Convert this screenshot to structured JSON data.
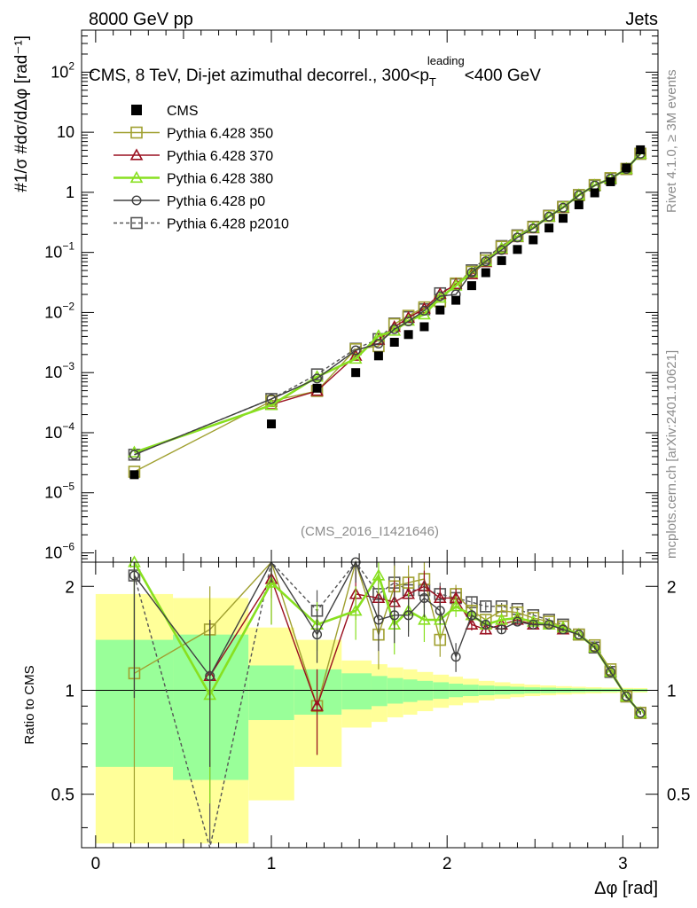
{
  "header": {
    "left": "8000 GeV pp",
    "right": "Jets"
  },
  "side_labels": {
    "rivet": "Rivet 4.1.0, ≥ 3M events",
    "mcplots": "mcplots.cern.ch [arXiv:2401.10621]"
  },
  "chart_data": {
    "type": "line",
    "title": "CMS, 8 TeV, Di-jet azimuthal decorrel., 300<p_T^leading<400 GeV",
    "title_parts": {
      "main": "CMS, 8 TeV, Di-jet azimuthal decorrel., 300<p",
      "sub": "T",
      "sup": "leading",
      "tail": "<400 GeV"
    },
    "analysis_label": "(CMS_2016_I1421646)",
    "xlabel": "Δφ [rad]",
    "ylabel": "#1/σ #dσ/dΔφ [rad⁻¹]",
    "ratio_ylabel": "Ratio to CMS",
    "xlim": [
      -0.08,
      3.2
    ],
    "ylim": [
      7e-07,
      500
    ],
    "yscale": "log",
    "ratio_ylim": [
      0.35,
      2.35
    ],
    "x_ticks": [
      0,
      1,
      2,
      3
    ],
    "y_ticks": [
      {
        "v": 1e-06,
        "base": "10",
        "exp": "−6"
      },
      {
        "v": 1e-05,
        "base": "10",
        "exp": "−5"
      },
      {
        "v": 0.0001,
        "base": "10",
        "exp": "−4"
      },
      {
        "v": 0.001,
        "base": "10",
        "exp": "−3"
      },
      {
        "v": 0.01,
        "base": "10",
        "exp": "−2"
      },
      {
        "v": 0.1,
        "base": "10",
        "exp": "−1"
      },
      {
        "v": 1,
        "base": "1",
        "exp": ""
      },
      {
        "v": 10,
        "base": "10",
        "exp": ""
      },
      {
        "v": 100,
        "base": "10",
        "exp": "2"
      }
    ],
    "ratio_ticks": [
      0.5,
      1,
      2
    ],
    "x": [
      0.22,
      0.65,
      1.0,
      1.26,
      1.48,
      1.61,
      1.7,
      1.78,
      1.87,
      1.96,
      2.05,
      2.14,
      2.22,
      2.31,
      2.4,
      2.49,
      2.58,
      2.66,
      2.75,
      2.84,
      2.93,
      3.02,
      3.1
    ],
    "cms": [
      2e-05,
      null,
      0.00014,
      0.00055,
      0.001,
      0.0019,
      0.0032,
      0.0043,
      0.0058,
      0.011,
      0.016,
      0.028,
      0.046,
      0.073,
      0.112,
      0.162,
      0.255,
      0.37,
      0.62,
      0.98,
      1.5,
      2.55,
      5.1
    ],
    "bins": [
      0,
      0.44,
      0.87,
      1.13,
      1.4,
      1.57,
      1.66,
      1.75,
      1.83,
      1.92,
      2.01,
      2.09,
      2.18,
      2.27,
      2.36,
      2.44,
      2.53,
      2.62,
      2.71,
      2.79,
      2.88,
      2.97,
      3.06,
      3.14
    ],
    "band_inner": [
      0.4,
      0.45,
      0.18,
      0.15,
      0.12,
      0.1,
      0.085,
      0.075,
      0.065,
      0.055,
      0.045,
      0.038,
      0.032,
      0.028,
      0.024,
      0.02,
      0.018,
      0.015,
      0.013,
      0.011,
      0.01,
      0.009,
      0.008
    ],
    "band_outer": [
      0.9,
      0.85,
      0.52,
      0.4,
      0.22,
      0.19,
      0.165,
      0.15,
      0.13,
      0.11,
      0.095,
      0.08,
      0.065,
      0.055,
      0.045,
      0.038,
      0.033,
      0.028,
      0.024,
      0.021,
      0.018,
      0.016,
      0.015
    ],
    "series": [
      {
        "name": "Pythia 6.428 350",
        "color": "#a0a030",
        "marker": "square-open",
        "dash": false,
        "ratio": [
          1.12,
          1.5,
          2.4,
          0.9,
          2.45,
          1.45,
          2.0,
          2.05,
          2.1,
          1.4,
          1.9,
          1.7,
          1.6,
          1.7,
          1.68,
          1.62,
          1.58,
          1.53,
          1.45,
          1.35,
          1.15,
          0.96,
          0.86
        ],
        "rerr": [
          1.2,
          0.5,
          0.55,
          0.25,
          0.35,
          0.3,
          0.3,
          0.25,
          0.25,
          0.15,
          0.12,
          0.06,
          0.05,
          0.04,
          0.03,
          0.03,
          0.02,
          0.02,
          0.02,
          0.015,
          0.012,
          0.01,
          0.01
        ]
      },
      {
        "name": "Pythia 6.428 370",
        "color": "#9a1020",
        "marker": "triangle-open",
        "dash": false,
        "ratio": [
          null,
          1.1,
          2.1,
          0.9,
          1.9,
          1.85,
          1.8,
          1.9,
          2.0,
          1.85,
          1.85,
          1.55,
          1.5,
          1.55,
          1.6,
          1.55,
          1.55,
          1.5,
          1.45,
          1.33,
          1.13,
          0.96,
          0.86
        ],
        "rerr": [
          null,
          0.5,
          0.55,
          0.25,
          0.3,
          0.3,
          0.28,
          0.22,
          0.22,
          0.15,
          0.12,
          0.06,
          0.05,
          0.04,
          0.03,
          0.03,
          0.02,
          0.02,
          0.02,
          0.015,
          0.012,
          0.01,
          0.01
        ]
      },
      {
        "name": "Pythia 6.428 380",
        "color": "#88e020",
        "marker": "triangle-open",
        "dash": false,
        "ratio": [
          2.35,
          0.97,
          2.05,
          1.55,
          1.7,
          2.15,
          1.55,
          1.7,
          1.6,
          1.6,
          1.75,
          1.65,
          1.55,
          1.6,
          1.62,
          1.58,
          1.55,
          1.52,
          1.45,
          1.33,
          1.13,
          0.96,
          0.86
        ],
        "rerr": [
          1.2,
          0.5,
          0.5,
          0.25,
          0.3,
          0.3,
          0.28,
          0.22,
          0.22,
          0.15,
          0.12,
          0.06,
          0.05,
          0.04,
          0.03,
          0.03,
          0.02,
          0.02,
          0.02,
          0.015,
          0.012,
          0.01,
          0.01
        ]
      },
      {
        "name": "Pythia 6.428 p0",
        "color": "#404040",
        "marker": "circle-open",
        "dash": false,
        "ratio": [
          2.15,
          1.1,
          2.6,
          1.45,
          2.35,
          1.6,
          1.65,
          1.65,
          1.85,
          1.7,
          1.25,
          1.65,
          1.55,
          1.5,
          1.58,
          1.55,
          1.55,
          1.5,
          1.45,
          1.33,
          1.13,
          0.96,
          0.86
        ],
        "rerr": [
          1.2,
          0.5,
          0.55,
          0.25,
          0.3,
          0.3,
          0.28,
          0.22,
          0.22,
          0.15,
          0.12,
          0.06,
          0.05,
          0.04,
          0.03,
          0.03,
          0.02,
          0.02,
          0.02,
          0.015,
          0.012,
          0.01,
          0.01
        ]
      },
      {
        "name": "Pythia 6.428 p2010",
        "color": "#555555",
        "marker": "square-open",
        "dash": true,
        "ratio": [
          2.15,
          0.12,
          2.6,
          1.7,
          2.5,
          1.9,
          2.05,
          1.95,
          1.95,
          1.9,
          1.85,
          1.8,
          1.75,
          1.75,
          1.72,
          1.65,
          1.6,
          1.55,
          1.45,
          1.33,
          1.13,
          0.96,
          0.86
        ],
        "rerr": [
          1.2,
          0.5,
          0.55,
          0.25,
          0.3,
          0.3,
          0.28,
          0.22,
          0.22,
          0.15,
          0.12,
          0.06,
          0.05,
          0.04,
          0.03,
          0.03,
          0.02,
          0.02,
          0.02,
          0.015,
          0.012,
          0.01,
          0.01
        ]
      }
    ],
    "legend": {
      "placement": "top-left",
      "cms_label": "CMS"
    }
  }
}
